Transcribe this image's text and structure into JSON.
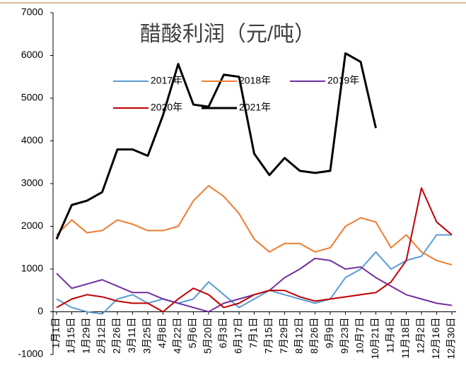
{
  "chart_data": {
    "type": "line",
    "title": "醋酸利润（元/吨）",
    "categories": [
      "1月1日",
      "1月15日",
      "1月29日",
      "2月12日",
      "2月26日",
      "3月11日",
      "3月25日",
      "4月8日",
      "4月22日",
      "5月6日",
      "5月20日",
      "6月3日",
      "6月17日",
      "7月1日",
      "7月15日",
      "7月29日",
      "8月12日",
      "8月26日",
      "9月9日",
      "9月23日",
      "10月7日",
      "10月21日",
      "11月4日",
      "11月18日",
      "12月2日",
      "12月16日",
      "12月30日"
    ],
    "series": [
      {
        "name": "2017年",
        "color": "#5b9bd5",
        "values": [
          300,
          100,
          0,
          -50,
          300,
          400,
          200,
          300,
          200,
          300,
          700,
          400,
          100,
          300,
          500,
          400,
          300,
          200,
          300,
          800,
          1000,
          1400,
          1000,
          1200,
          1300,
          1800,
          1800
        ]
      },
      {
        "name": "2018年",
        "color": "#ed7d31",
        "values": [
          1800,
          2150,
          1850,
          1900,
          2150,
          2050,
          1900,
          1900,
          2000,
          2600,
          2950,
          2700,
          2300,
          1700,
          1400,
          1600,
          1600,
          1400,
          1500,
          2000,
          2200,
          2100,
          1500,
          1800,
          1400,
          1200,
          1100
        ]
      },
      {
        "name": "2019年",
        "color": "#7030a0",
        "values": [
          900,
          550,
          650,
          750,
          600,
          450,
          450,
          300,
          200,
          100,
          0,
          200,
          300,
          400,
          500,
          800,
          1000,
          1250,
          1200,
          1000,
          1050,
          800,
          600,
          400,
          300,
          200,
          150
        ]
      },
      {
        "name": "2020年",
        "color": "#c00000",
        "values": [
          100,
          300,
          400,
          350,
          250,
          200,
          200,
          0,
          300,
          550,
          400,
          100,
          200,
          400,
          500,
          500,
          350,
          250,
          300,
          350,
          400,
          450,
          700,
          1200,
          2900,
          2100,
          1800
        ]
      },
      {
        "name": "2021年",
        "color": "#000000",
        "values": [
          1700,
          2500,
          2600,
          2800,
          3800,
          3800,
          3650,
          4600,
          5800,
          4850,
          4800,
          5550,
          5500,
          3700,
          3200,
          3600,
          3300,
          3250,
          3300,
          6050,
          5850,
          4300,
          null,
          null,
          null,
          null,
          null
        ]
      }
    ],
    "ylim": [
      -1000,
      7000
    ],
    "yticks": [
      -1000,
      0,
      1000,
      2000,
      3000,
      4000,
      5000,
      6000,
      7000
    ]
  }
}
